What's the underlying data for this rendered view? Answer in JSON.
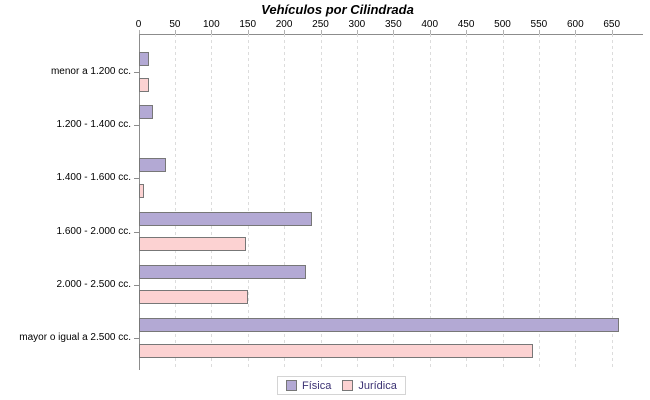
{
  "chart_data": {
    "type": "bar",
    "orientation": "horizontal",
    "title": "Vehículos por Cilindrada",
    "categories": [
      "menor a 1.200 cc.",
      "1.200 - 1.400 cc.",
      "1.400 - 1.600 cc.",
      "1.600 - 2.000 cc.",
      "2.000 - 2.500 cc.",
      "mayor o igual a 2.500 cc."
    ],
    "series": [
      {
        "name": "Física",
        "slug": "fisica",
        "color": "#b3a9d4",
        "values": [
          15,
          20,
          38,
          238,
          230,
          660
        ]
      },
      {
        "name": "Jurídica",
        "slug": "juridica",
        "color": "#fcd2d2",
        "values": [
          15,
          0,
          7,
          147,
          150,
          542
        ]
      }
    ],
    "x_ticks": [
      0,
      50,
      100,
      150,
      200,
      250,
      300,
      350,
      400,
      450,
      500,
      550,
      600,
      650
    ],
    "xlim": [
      0,
      693
    ],
    "grid": "vertical-dashed",
    "legend_position": "bottom",
    "colors": {
      "bar_border": "#777777",
      "axis": "#8c8c8c",
      "grid": "#dcdcdc",
      "legend_text": "#3b3173",
      "legend_border": "#d4d4d4",
      "title_text": "#000000"
    }
  }
}
